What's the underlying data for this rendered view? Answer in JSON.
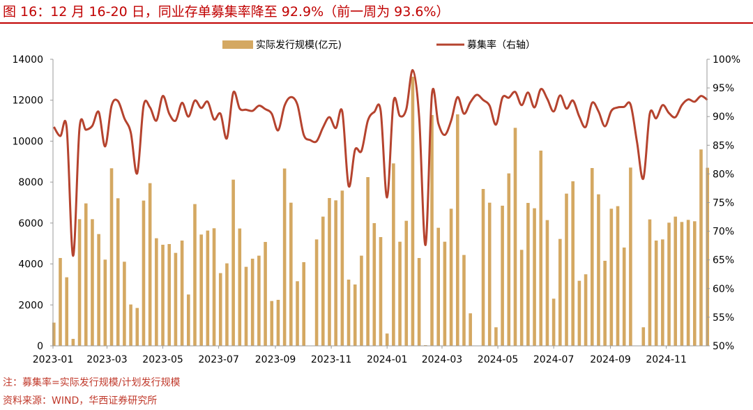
{
  "title": "图 16：12 月 16-20 日，同业存单募集率降至 92.9%（前一周为 93.6%）",
  "notes": {
    "note": "注：募集率=实际发行规模/计划发行规模",
    "source": "资料来源：WIND，华西证券研究所"
  },
  "chart_data": {
    "type": "bar+line",
    "x_tick_labels": [
      "2023-01",
      "2023-03",
      "2023-05",
      "2023-07",
      "2023-09",
      "2023-11",
      "2024-01",
      "2024-03",
      "2024-05",
      "2024-07",
      "2024-09",
      "2024-11"
    ],
    "left_axis": {
      "ticks": [
        "0",
        "2000",
        "4000",
        "6000",
        "8000",
        "10000",
        "12000",
        "14000"
      ],
      "ylim": [
        0,
        14000
      ]
    },
    "right_axis": {
      "ticks": [
        "50%",
        "55%",
        "60%",
        "65%",
        "70%",
        "75%",
        "80%",
        "85%",
        "90%",
        "95%",
        "100%"
      ],
      "ylim": [
        50,
        100
      ]
    },
    "legend_position": "top",
    "grid": false,
    "series": [
      {
        "name": "实际发行规模(亿元)",
        "type": "bar",
        "axis": "left",
        "color": "#d4a862",
        "values": [
          1136,
          4292,
          3350,
          341,
          6188,
          6960,
          6188,
          5461,
          4213,
          8675,
          7210,
          4110,
          2021,
          1851,
          7097,
          7948,
          5257,
          4939,
          4973,
          4542,
          5144,
          2509,
          6926,
          5438,
          5632,
          5745,
          3554,
          4031,
          8119,
          5734,
          3861,
          4258,
          4406,
          5076,
          2191,
          2248,
          8664,
          6994,
          3157,
          4088,
          0,
          5200,
          6313,
          7221,
          7108,
          7585,
          3236,
          2998,
          4406,
          8243,
          5995,
          5314,
          602,
          8913,
          5087,
          6109,
          13148,
          4292,
          34,
          11275,
          5768,
          5087,
          6699,
          11309,
          4440,
          1590,
          0,
          7664,
          6994,
          908,
          6847,
          8425,
          10651,
          4690,
          6983,
          6722,
          9538,
          6143,
          2305,
          5223,
          7437,
          8039,
          3179,
          3497,
          8686,
          7403,
          4156,
          6699,
          6824,
          4803,
          8709,
          0,
          908,
          6177,
          5144,
          5200,
          6018,
          6313,
          6052,
          6154,
          6086,
          9595,
          8700
        ]
      },
      {
        "name": "募集率（右轴）",
        "type": "line",
        "axis": "right",
        "color": "#b5432e",
        "values": [
          88.2,
          86.6,
          88.0,
          65.7,
          88.0,
          87.7,
          88.4,
          90.8,
          84.8,
          91.9,
          92.7,
          89.7,
          87.2,
          80.1,
          91.9,
          91.6,
          89.3,
          93.6,
          90.5,
          89.3,
          92.4,
          90.0,
          92.8,
          91.5,
          92.6,
          89.5,
          90.5,
          86.2,
          94.2,
          91.4,
          91.2,
          91.0,
          91.9,
          91.3,
          90.5,
          87.6,
          91.9,
          93.4,
          92.1,
          86.8,
          85.9,
          85.7,
          88.1,
          89.9,
          88.0,
          90.9,
          77.9,
          84.2,
          84.0,
          89.3,
          90.8,
          91.0,
          75.9,
          92.6,
          90.1,
          91.3,
          98.1,
          90.0,
          67.6,
          93.9,
          88.8,
          86.8,
          89.3,
          93.4,
          90.5,
          92.5,
          93.8,
          92.9,
          91.9,
          88.6,
          93.3,
          93.3,
          94.3,
          92.0,
          94.2,
          91.6,
          94.8,
          93.1,
          90.9,
          93.7,
          91.4,
          92.8,
          90.0,
          88.2,
          92.4,
          90.9,
          88.3,
          91.0,
          91.6,
          91.7,
          92.1,
          85.6,
          79.2,
          90.5,
          89.7,
          92.0,
          90.6,
          89.9,
          92.0,
          93.0,
          92.6,
          93.6,
          92.9
        ]
      }
    ]
  }
}
